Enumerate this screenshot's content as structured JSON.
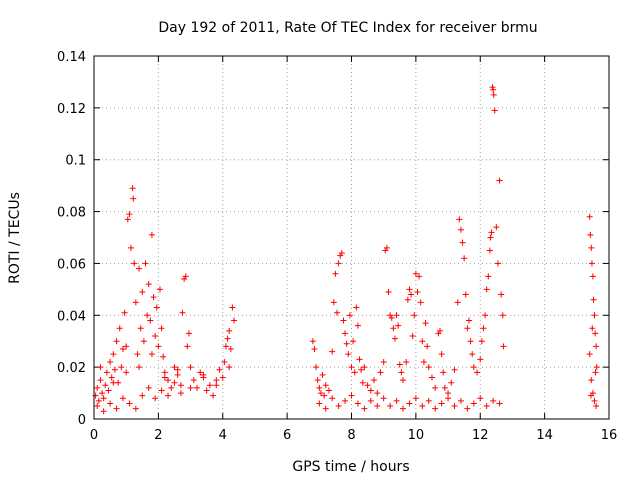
{
  "chart_data": {
    "type": "scatter",
    "title": "Day 192 of 2011, Rate Of TEC Index for receiver brmu",
    "xlabel": "GPS time / hours",
    "ylabel": "ROTI / TECUs",
    "xlim": [
      0,
      16
    ],
    "ylim": [
      0,
      0.14
    ],
    "xticks": [
      "0",
      "2",
      "4",
      "6",
      "8",
      "10",
      "12",
      "14",
      "16"
    ],
    "yticks": [
      "0",
      "0.02",
      "0.04",
      "0.06",
      "0.08",
      "0.1",
      "0.12",
      "0.14"
    ],
    "grid": true,
    "marker": "+",
    "color": "#ff0000",
    "series": [
      {
        "name": "ROTI",
        "points": [
          [
            0.05,
            0.009
          ],
          [
            0.1,
            0.012
          ],
          [
            0.15,
            0.007
          ],
          [
            0.2,
            0.015
          ],
          [
            0.25,
            0.01
          ],
          [
            0.3,
            0.008
          ],
          [
            0.35,
            0.013
          ],
          [
            0.4,
            0.018
          ],
          [
            0.45,
            0.011
          ],
          [
            0.5,
            0.022
          ],
          [
            0.55,
            0.016
          ],
          [
            0.6,
            0.025
          ],
          [
            0.65,
            0.019
          ],
          [
            0.7,
            0.03
          ],
          [
            0.75,
            0.014
          ],
          [
            0.8,
            0.035
          ],
          [
            0.85,
            0.02
          ],
          [
            0.9,
            0.027
          ],
          [
            0.95,
            0.041
          ],
          [
            1.0,
            0.018
          ],
          [
            1.05,
            0.077
          ],
          [
            1.1,
            0.079
          ],
          [
            1.15,
            0.066
          ],
          [
            1.2,
            0.089
          ],
          [
            1.22,
            0.085
          ],
          [
            1.25,
            0.06
          ],
          [
            1.3,
            0.045
          ],
          [
            1.35,
            0.025
          ],
          [
            1.4,
            0.058
          ],
          [
            1.45,
            0.035
          ],
          [
            1.5,
            0.049
          ],
          [
            1.55,
            0.03
          ],
          [
            1.6,
            0.06
          ],
          [
            1.65,
            0.04
          ],
          [
            1.7,
            0.052
          ],
          [
            1.75,
            0.038
          ],
          [
            1.8,
            0.071
          ],
          [
            1.85,
            0.047
          ],
          [
            1.9,
            0.032
          ],
          [
            1.95,
            0.043
          ],
          [
            2.0,
            0.028
          ],
          [
            2.05,
            0.05
          ],
          [
            2.1,
            0.035
          ],
          [
            2.15,
            0.024
          ],
          [
            2.2,
            0.018
          ],
          [
            2.3,
            0.015
          ],
          [
            2.4,
            0.012
          ],
          [
            2.5,
            0.02
          ],
          [
            2.6,
            0.017
          ],
          [
            2.7,
            0.013
          ],
          [
            2.75,
            0.041
          ],
          [
            2.8,
            0.054
          ],
          [
            2.85,
            0.055
          ],
          [
            2.9,
            0.028
          ],
          [
            2.95,
            0.033
          ],
          [
            3.0,
            0.02
          ],
          [
            3.1,
            0.015
          ],
          [
            3.2,
            0.012
          ],
          [
            3.3,
            0.018
          ],
          [
            3.4,
            0.017
          ],
          [
            3.5,
            0.011
          ],
          [
            3.6,
            0.013
          ],
          [
            3.7,
            0.009
          ],
          [
            3.8,
            0.015
          ],
          [
            3.9,
            0.019
          ],
          [
            4.0,
            0.016
          ],
          [
            4.05,
            0.022
          ],
          [
            4.1,
            0.028
          ],
          [
            4.15,
            0.031
          ],
          [
            4.2,
            0.034
          ],
          [
            4.25,
            0.027
          ],
          [
            4.3,
            0.043
          ],
          [
            4.35,
            0.038
          ],
          [
            0.1,
            0.005
          ],
          [
            0.3,
            0.003
          ],
          [
            0.5,
            0.006
          ],
          [
            0.7,
            0.004
          ],
          [
            0.9,
            0.008
          ],
          [
            1.1,
            0.006
          ],
          [
            1.3,
            0.004
          ],
          [
            1.5,
            0.009
          ],
          [
            1.7,
            0.012
          ],
          [
            1.9,
            0.008
          ],
          [
            2.1,
            0.011
          ],
          [
            2.3,
            0.009
          ],
          [
            2.5,
            0.014
          ],
          [
            2.7,
            0.01
          ],
          [
            0.2,
            0.02
          ],
          [
            0.6,
            0.014
          ],
          [
            1.0,
            0.028
          ],
          [
            1.4,
            0.02
          ],
          [
            1.8,
            0.025
          ],
          [
            2.2,
            0.016
          ],
          [
            2.6,
            0.019
          ],
          [
            3.0,
            0.012
          ],
          [
            3.4,
            0.016
          ],
          [
            3.8,
            0.013
          ],
          [
            4.2,
            0.02
          ],
          [
            6.8,
            0.03
          ],
          [
            6.85,
            0.027
          ],
          [
            6.9,
            0.02
          ],
          [
            6.95,
            0.015
          ],
          [
            7.0,
            0.012
          ],
          [
            7.05,
            0.01
          ],
          [
            7.1,
            0.017
          ],
          [
            7.15,
            0.009
          ],
          [
            7.2,
            0.013
          ],
          [
            7.3,
            0.011
          ],
          [
            7.4,
            0.026
          ],
          [
            7.45,
            0.045
          ],
          [
            7.5,
            0.056
          ],
          [
            7.55,
            0.041
          ],
          [
            7.6,
            0.06
          ],
          [
            7.65,
            0.063
          ],
          [
            7.7,
            0.064
          ],
          [
            7.75,
            0.038
          ],
          [
            7.8,
            0.033
          ],
          [
            7.85,
            0.029
          ],
          [
            7.9,
            0.025
          ],
          [
            7.95,
            0.04
          ],
          [
            8.0,
            0.02
          ],
          [
            8.05,
            0.03
          ],
          [
            8.1,
            0.018
          ],
          [
            8.15,
            0.043
          ],
          [
            8.2,
            0.036
          ],
          [
            8.25,
            0.023
          ],
          [
            8.3,
            0.019
          ],
          [
            8.35,
            0.014
          ],
          [
            8.4,
            0.02
          ],
          [
            8.5,
            0.013
          ],
          [
            8.6,
            0.011
          ],
          [
            8.7,
            0.015
          ],
          [
            8.8,
            0.01
          ],
          [
            8.9,
            0.018
          ],
          [
            9.0,
            0.022
          ],
          [
            9.05,
            0.065
          ],
          [
            9.1,
            0.066
          ],
          [
            9.15,
            0.049
          ],
          [
            9.2,
            0.04
          ],
          [
            9.25,
            0.039
          ],
          [
            9.3,
            0.035
          ],
          [
            9.35,
            0.031
          ],
          [
            9.4,
            0.04
          ],
          [
            9.45,
            0.036
          ],
          [
            9.5,
            0.021
          ],
          [
            9.55,
            0.018
          ],
          [
            9.6,
            0.015
          ],
          [
            9.7,
            0.022
          ],
          [
            9.75,
            0.046
          ],
          [
            9.8,
            0.05
          ],
          [
            9.85,
            0.048
          ],
          [
            9.9,
            0.032
          ],
          [
            9.95,
            0.04
          ],
          [
            10.0,
            0.056
          ],
          [
            10.05,
            0.049
          ],
          [
            10.1,
            0.055
          ],
          [
            10.15,
            0.045
          ],
          [
            10.2,
            0.03
          ],
          [
            10.25,
            0.022
          ],
          [
            10.3,
            0.037
          ],
          [
            10.35,
            0.028
          ],
          [
            10.4,
            0.02
          ],
          [
            10.5,
            0.016
          ],
          [
            10.6,
            0.012
          ],
          [
            10.7,
            0.033
          ],
          [
            10.75,
            0.034
          ],
          [
            10.8,
            0.025
          ],
          [
            10.85,
            0.018
          ],
          [
            10.9,
            0.012
          ],
          [
            11.0,
            0.01
          ],
          [
            11.1,
            0.014
          ],
          [
            11.2,
            0.019
          ],
          [
            11.3,
            0.045
          ],
          [
            11.35,
            0.077
          ],
          [
            11.4,
            0.073
          ],
          [
            11.45,
            0.068
          ],
          [
            11.5,
            0.062
          ],
          [
            11.55,
            0.048
          ],
          [
            11.6,
            0.035
          ],
          [
            11.65,
            0.038
          ],
          [
            11.7,
            0.03
          ],
          [
            11.75,
            0.025
          ],
          [
            11.8,
            0.02
          ],
          [
            11.9,
            0.018
          ],
          [
            12.0,
            0.023
          ],
          [
            12.05,
            0.03
          ],
          [
            12.1,
            0.035
          ],
          [
            12.15,
            0.04
          ],
          [
            12.2,
            0.05
          ],
          [
            12.25,
            0.055
          ],
          [
            12.3,
            0.065
          ],
          [
            12.32,
            0.07
          ],
          [
            12.35,
            0.072
          ],
          [
            12.38,
            0.128
          ],
          [
            12.4,
            0.127
          ],
          [
            12.42,
            0.125
          ],
          [
            12.45,
            0.119
          ],
          [
            12.5,
            0.074
          ],
          [
            12.55,
            0.06
          ],
          [
            12.6,
            0.092
          ],
          [
            12.65,
            0.048
          ],
          [
            12.7,
            0.04
          ],
          [
            12.72,
            0.028
          ],
          [
            7.0,
            0.006
          ],
          [
            7.2,
            0.004
          ],
          [
            7.4,
            0.008
          ],
          [
            7.6,
            0.005
          ],
          [
            7.8,
            0.007
          ],
          [
            8.0,
            0.009
          ],
          [
            8.2,
            0.006
          ],
          [
            8.4,
            0.004
          ],
          [
            8.6,
            0.007
          ],
          [
            8.8,
            0.005
          ],
          [
            9.0,
            0.008
          ],
          [
            9.2,
            0.005
          ],
          [
            9.4,
            0.007
          ],
          [
            9.6,
            0.004
          ],
          [
            9.8,
            0.006
          ],
          [
            10.0,
            0.008
          ],
          [
            10.2,
            0.005
          ],
          [
            10.4,
            0.007
          ],
          [
            10.6,
            0.004
          ],
          [
            10.8,
            0.006
          ],
          [
            11.0,
            0.008
          ],
          [
            11.2,
            0.005
          ],
          [
            11.4,
            0.007
          ],
          [
            11.6,
            0.004
          ],
          [
            11.8,
            0.006
          ],
          [
            12.0,
            0.008
          ],
          [
            12.2,
            0.005
          ],
          [
            12.4,
            0.007
          ],
          [
            12.6,
            0.006
          ],
          [
            15.4,
            0.078
          ],
          [
            15.42,
            0.071
          ],
          [
            15.45,
            0.066
          ],
          [
            15.47,
            0.06
          ],
          [
            15.5,
            0.055
          ],
          [
            15.52,
            0.046
          ],
          [
            15.55,
            0.04
          ],
          [
            15.57,
            0.033
          ],
          [
            15.6,
            0.028
          ],
          [
            15.62,
            0.02
          ],
          [
            15.45,
            0.015
          ],
          [
            15.5,
            0.01
          ],
          [
            15.55,
            0.007
          ],
          [
            15.6,
            0.005
          ],
          [
            15.4,
            0.025
          ],
          [
            15.48,
            0.035
          ],
          [
            15.58,
            0.018
          ],
          [
            15.44,
            0.009
          ]
        ]
      }
    ]
  }
}
